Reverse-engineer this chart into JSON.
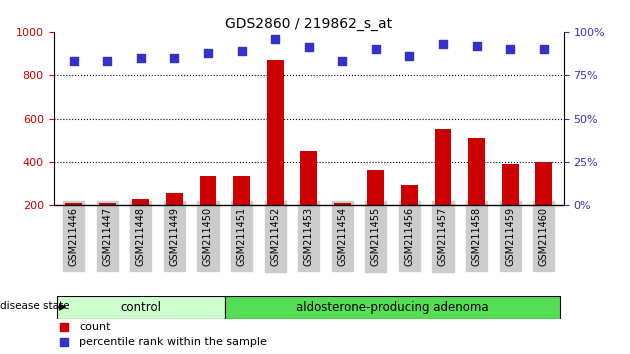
{
  "title": "GDS2860 / 219862_s_at",
  "samples": [
    "GSM211446",
    "GSM211447",
    "GSM211448",
    "GSM211449",
    "GSM211450",
    "GSM211451",
    "GSM211452",
    "GSM211453",
    "GSM211454",
    "GSM211455",
    "GSM211456",
    "GSM211457",
    "GSM211458",
    "GSM211459",
    "GSM211460"
  ],
  "counts": [
    210,
    210,
    230,
    255,
    335,
    335,
    870,
    450,
    210,
    365,
    295,
    550,
    510,
    390,
    400
  ],
  "percentiles": [
    83,
    83,
    85,
    85,
    88,
    89,
    96,
    91,
    83,
    90,
    86,
    93,
    92,
    90,
    90
  ],
  "ylim_left": [
    200,
    1000
  ],
  "ylim_right": [
    0,
    100
  ],
  "yticks_left": [
    200,
    400,
    600,
    800,
    1000
  ],
  "yticks_right": [
    0,
    25,
    50,
    75,
    100
  ],
  "ytick_labels_right": [
    "0%",
    "25%",
    "50%",
    "75%",
    "100%"
  ],
  "bar_color": "#cc0000",
  "dot_color": "#3333cc",
  "grid_color": "#000000",
  "control_n": 5,
  "adenoma_n": 10,
  "control_label": "control",
  "adenoma_label": "aldosterone-producing adenoma",
  "disease_state_label": "disease state",
  "legend_count": "count",
  "legend_percentile": "percentile rank within the sample",
  "control_color": "#ccffcc",
  "adenoma_color": "#55dd55",
  "xtick_bg": "#cccccc",
  "title_fontsize": 10,
  "axis_fontsize": 8
}
